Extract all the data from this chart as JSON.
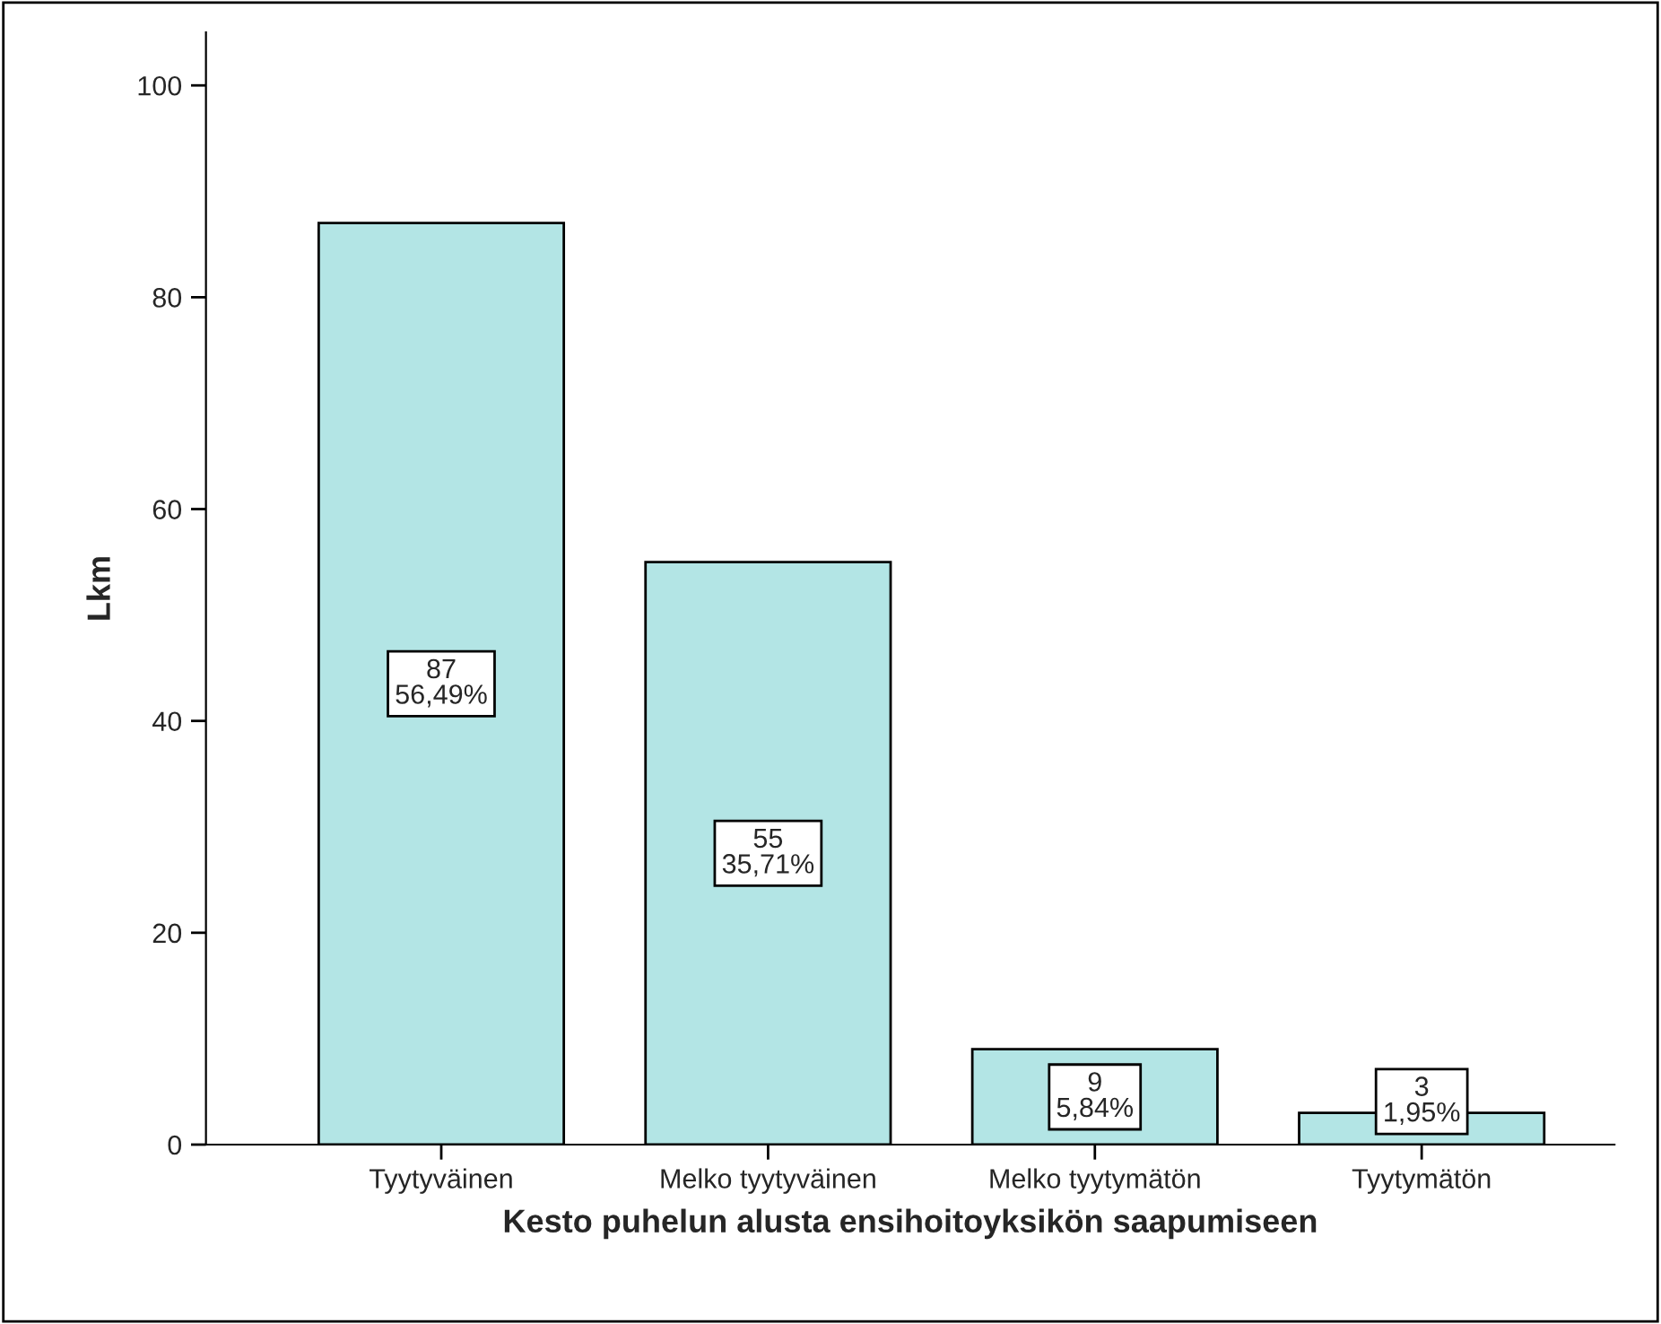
{
  "chart_data": {
    "type": "bar",
    "xlabel": "Kesto puhelun alusta ensihoitoyksikön saapumiseen",
    "ylabel": "Lkm",
    "categories": [
      "Tyytyväinen",
      "Melko tyytyväinen",
      "Melko tyytymätön",
      "Tyytymätön"
    ],
    "values": [
      87,
      55,
      9,
      3
    ],
    "value_labels": [
      "87\n56,49%",
      "55\n35,71%",
      "9\n5,84%",
      "3\n1,95%"
    ],
    "color": "#b3e5e5",
    "ylim": [
      0,
      105
    ],
    "yticks": [
      0,
      20,
      40,
      60,
      80,
      100
    ],
    "grid": false,
    "legend": false
  }
}
